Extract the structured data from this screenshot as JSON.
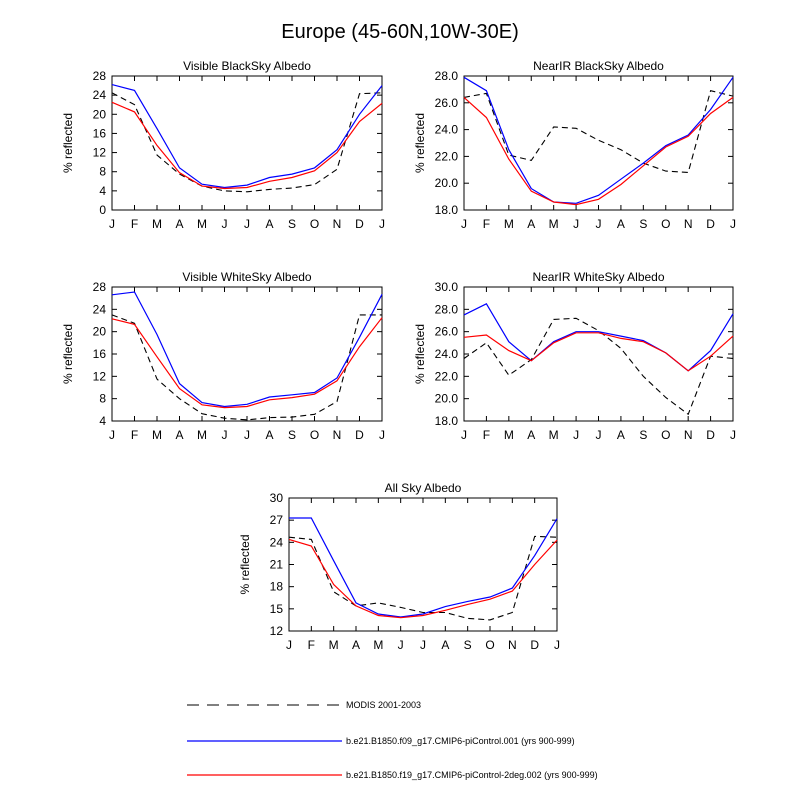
{
  "title": "Europe (45-60N,10W-30E)",
  "months": [
    "J",
    "F",
    "M",
    "A",
    "M",
    "J",
    "J",
    "A",
    "S",
    "O",
    "N",
    "D",
    "J"
  ],
  "legend": [
    {
      "label": "MODIS 2001-2003",
      "color": "#000000",
      "dash": true
    },
    {
      "label": "b.e21.B1850.f09_g17.CMIP6-piControl.001 (yrs 900-999)",
      "color": "#0000ff",
      "dash": false
    },
    {
      "label": "b.e21.B1850.f19_g17.CMIP6-piControl-2deg.002 (yrs 900-999)",
      "color": "#ff0000",
      "dash": false
    }
  ],
  "chart_data": [
    {
      "type": "line",
      "title": "Visible BlackSky Albedo",
      "ylabel": "% reflected",
      "ylim": [
        0,
        28
      ],
      "yticks": [
        "0",
        "4",
        "8",
        "12",
        "16",
        "20",
        "24",
        "28"
      ],
      "categories": [
        "J",
        "F",
        "M",
        "A",
        "M",
        "J",
        "J",
        "A",
        "S",
        "O",
        "N",
        "D",
        "J"
      ],
      "series": [
        {
          "name": "MODIS 2001-2003",
          "values": [
            24.5,
            22.0,
            11.5,
            7.5,
            5.0,
            4.0,
            3.8,
            4.3,
            4.6,
            5.3,
            8.5,
            24.3,
            24.5
          ]
        },
        {
          "name": "b.e21.B1850.f09_g17.CMIP6-piControl.001 (yrs 900-999)",
          "values": [
            26.2,
            25.0,
            17.0,
            8.8,
            5.4,
            4.7,
            5.2,
            6.8,
            7.5,
            8.8,
            12.6,
            20.0,
            26.0
          ]
        },
        {
          "name": "b.e21.B1850.f19_g17.CMIP6-piControl-2deg.002 (yrs 900-999)",
          "values": [
            22.5,
            20.5,
            13.5,
            7.8,
            5.0,
            4.5,
            4.7,
            6.0,
            6.8,
            8.2,
            12.0,
            18.5,
            22.3
          ]
        }
      ]
    },
    {
      "type": "line",
      "title": "NearIR BlackSky Albedo",
      "ylabel": "% reflected",
      "ylim": [
        18,
        28
      ],
      "yticks": [
        "18.0",
        "20.0",
        "22.0",
        "24.0",
        "26.0",
        "28.0"
      ],
      "categories": [
        "J",
        "F",
        "M",
        "A",
        "M",
        "J",
        "J",
        "A",
        "S",
        "O",
        "N",
        "D",
        "J"
      ],
      "series": [
        {
          "name": "MODIS 2001-2003",
          "values": [
            26.4,
            26.7,
            22.1,
            21.7,
            24.2,
            24.1,
            23.2,
            22.5,
            21.5,
            20.9,
            20.8,
            26.9,
            26.5
          ]
        },
        {
          "name": "b.e21.B1850.f09_g17.CMIP6-piControl.001 (yrs 900-999)",
          "values": [
            27.9,
            26.9,
            22.5,
            19.6,
            18.6,
            18.5,
            19.1,
            20.3,
            21.5,
            22.8,
            23.6,
            25.5,
            27.9
          ]
        },
        {
          "name": "b.e21.B1850.f19_g17.CMIP6-piControl-2deg.002 (yrs 900-999)",
          "values": [
            26.4,
            24.9,
            21.8,
            19.4,
            18.6,
            18.4,
            18.8,
            19.9,
            21.3,
            22.7,
            23.5,
            25.2,
            26.4
          ]
        }
      ]
    },
    {
      "type": "line",
      "title": "Visible WhiteSky Albedo",
      "ylabel": "% reflected",
      "ylim": [
        4,
        28
      ],
      "yticks": [
        "4",
        "8",
        "12",
        "16",
        "20",
        "24",
        "28"
      ],
      "categories": [
        "J",
        "F",
        "M",
        "A",
        "M",
        "J",
        "J",
        "A",
        "S",
        "O",
        "N",
        "D",
        "J"
      ],
      "series": [
        {
          "name": "MODIS 2001-2003",
          "values": [
            23.0,
            21.5,
            11.5,
            8.0,
            5.3,
            4.5,
            4.2,
            4.6,
            4.7,
            5.2,
            7.5,
            23.0,
            23.0
          ]
        },
        {
          "name": "b.e21.B1850.f09_g17.CMIP6-piControl.001 (yrs 900-999)",
          "values": [
            26.6,
            27.1,
            19.5,
            10.7,
            7.3,
            6.6,
            7.0,
            8.3,
            8.7,
            9.1,
            11.7,
            19.0,
            26.7
          ]
        },
        {
          "name": "b.e21.B1850.f19_g17.CMIP6-piControl-2deg.002 (yrs 900-999)",
          "values": [
            22.3,
            21.3,
            15.5,
            9.8,
            6.9,
            6.4,
            6.6,
            7.8,
            8.2,
            8.8,
            11.2,
            17.3,
            22.5
          ]
        }
      ]
    },
    {
      "type": "line",
      "title": "NearIR WhiteSky Albedo",
      "ylabel": "% reflected",
      "ylim": [
        18,
        30
      ],
      "yticks": [
        "18.0",
        "20.0",
        "22.0",
        "24.0",
        "26.0",
        "28.0",
        "30.0"
      ],
      "categories": [
        "J",
        "F",
        "M",
        "A",
        "M",
        "J",
        "J",
        "A",
        "S",
        "O",
        "N",
        "D",
        "J"
      ],
      "series": [
        {
          "name": "MODIS 2001-2003",
          "values": [
            23.6,
            25.0,
            22.1,
            23.5,
            27.1,
            27.2,
            26.1,
            24.5,
            22.0,
            20.1,
            18.6,
            23.8,
            23.6
          ]
        },
        {
          "name": "b.e21.B1850.f09_g17.CMIP6-piControl.001 (yrs 900-999)",
          "values": [
            27.5,
            28.5,
            25.1,
            23.4,
            25.1,
            26.0,
            26.0,
            25.6,
            25.2,
            24.1,
            22.5,
            24.3,
            27.6
          ]
        },
        {
          "name": "b.e21.B1850.f19_g17.CMIP6-piControl-2deg.002 (yrs 900-999)",
          "values": [
            25.5,
            25.7,
            24.3,
            23.4,
            25.0,
            25.9,
            25.9,
            25.4,
            25.1,
            24.1,
            22.5,
            23.8,
            25.6
          ]
        }
      ]
    },
    {
      "type": "line",
      "title": "All Sky Albedo",
      "ylabel": "% reflected",
      "ylim": [
        12,
        30
      ],
      "yticks": [
        "12",
        "15",
        "18",
        "21",
        "24",
        "27",
        "30"
      ],
      "categories": [
        "J",
        "F",
        "M",
        "A",
        "M",
        "J",
        "J",
        "A",
        "S",
        "O",
        "N",
        "D",
        "J"
      ],
      "series": [
        {
          "name": "MODIS 2001-2003",
          "values": [
            24.7,
            24.4,
            17.3,
            15.4,
            15.8,
            15.2,
            14.5,
            14.5,
            13.7,
            13.5,
            14.5,
            24.8,
            24.7
          ]
        },
        {
          "name": "b.e21.B1850.f09_g17.CMIP6-piControl.001 (yrs 900-999)",
          "values": [
            27.3,
            27.3,
            21.5,
            15.8,
            14.3,
            13.9,
            14.3,
            15.3,
            16.0,
            16.6,
            17.8,
            22.2,
            27.2
          ]
        },
        {
          "name": "b.e21.B1850.f19_g17.CMIP6-piControl-2deg.002 (yrs 900-999)",
          "values": [
            24.4,
            23.5,
            18.3,
            15.4,
            14.1,
            13.8,
            14.1,
            14.8,
            15.6,
            16.3,
            17.4,
            21.0,
            24.3
          ]
        }
      ]
    }
  ]
}
